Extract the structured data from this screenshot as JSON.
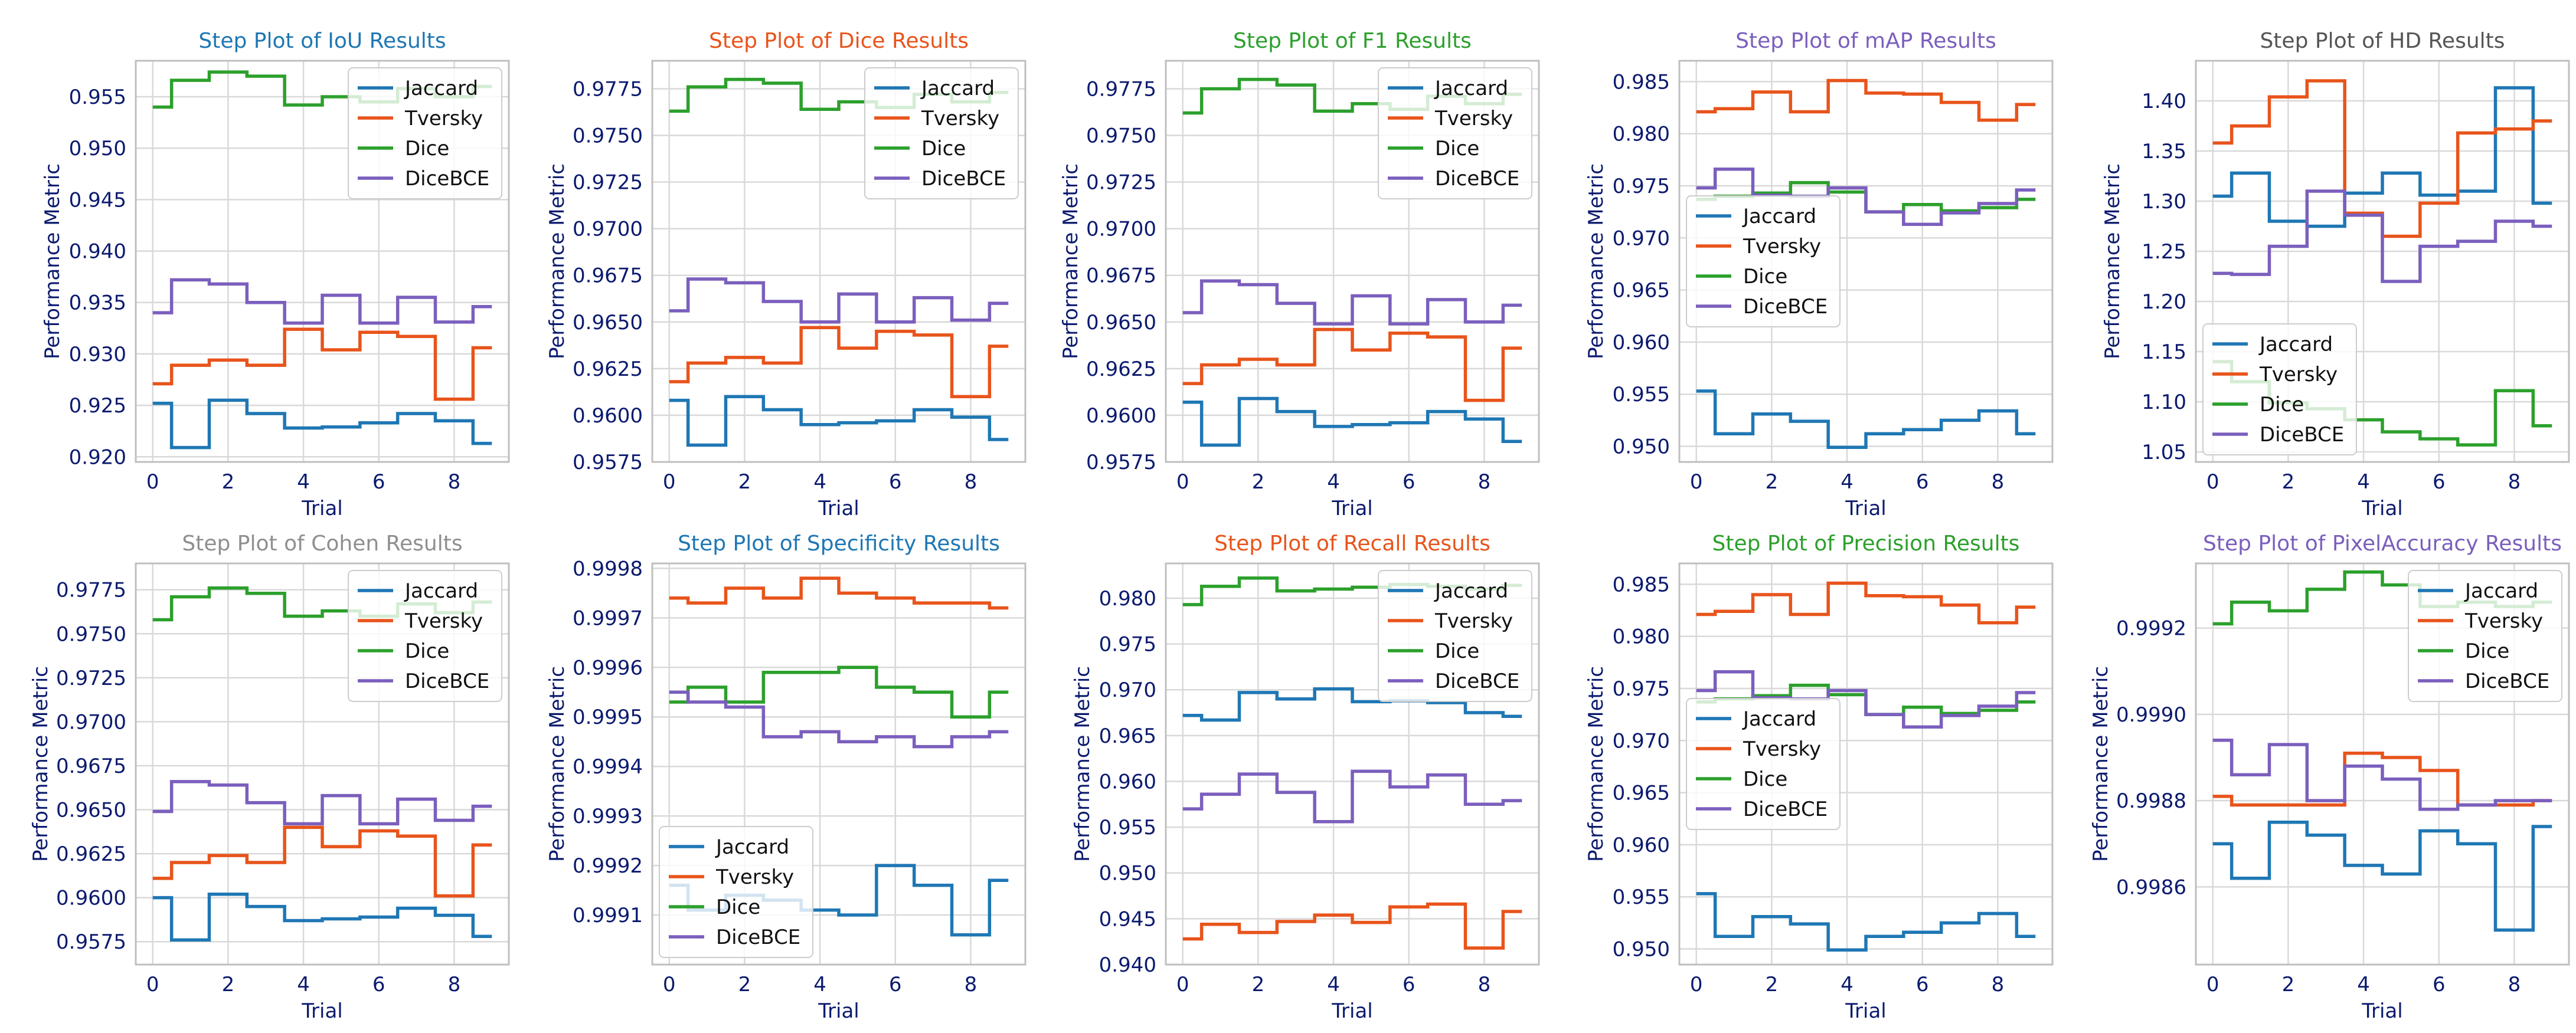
{
  "figure": {
    "series_names": [
      "Jaccard",
      "Tversky",
      "Dice",
      "DiceBCE"
    ],
    "series_colors": [
      "#1f77b4",
      "#e8541b",
      "#2ca02c",
      "#7b5fbd"
    ],
    "xlabel": "Trial",
    "ylabel": "Performance Metric",
    "x": [
      0,
      1,
      2,
      3,
      4,
      5,
      6,
      7,
      8,
      9
    ]
  },
  "chart_data": [
    {
      "type": "line",
      "step": "mid",
      "title": "Step Plot of IoU Results",
      "title_color": "#1f77b4",
      "xlabel": "Trial",
      "ylabel": "Performance Metric",
      "xlim": [
        -0.45,
        9.45
      ],
      "ylim": [
        0.9195,
        0.9585
      ],
      "xticks": [
        0,
        2,
        4,
        6,
        8
      ],
      "yticks": [
        0.92,
        0.925,
        0.93,
        0.935,
        0.94,
        0.945,
        0.95,
        0.955
      ],
      "yticklabels": [
        "0.920",
        "0.925",
        "0.930",
        "0.935",
        "0.940",
        "0.945",
        "0.950",
        "0.955"
      ],
      "legend_loc": "upper right",
      "series": [
        {
          "name": "Jaccard",
          "values": [
            0.9252,
            0.9209,
            0.9255,
            0.9242,
            0.9228,
            0.9229,
            0.9233,
            0.9242,
            0.9235,
            0.9213
          ]
        },
        {
          "name": "Tversky",
          "values": [
            0.9271,
            0.9289,
            0.9294,
            0.9289,
            0.9324,
            0.9304,
            0.9321,
            0.9317,
            0.9256,
            0.9306
          ]
        },
        {
          "name": "Dice",
          "values": [
            0.954,
            0.9566,
            0.9574,
            0.957,
            0.9542,
            0.955,
            0.9545,
            0.9558,
            0.955,
            0.956
          ]
        },
        {
          "name": "DiceBCE",
          "values": [
            0.934,
            0.9372,
            0.9368,
            0.935,
            0.933,
            0.9357,
            0.933,
            0.9355,
            0.9331,
            0.9346
          ]
        }
      ]
    },
    {
      "type": "line",
      "step": "mid",
      "title": "Step Plot of Dice Results",
      "title_color": "#e8541b",
      "xlabel": "Trial",
      "ylabel": "Performance Metric",
      "xlim": [
        -0.45,
        9.45
      ],
      "ylim": [
        0.9575,
        0.979
      ],
      "xticks": [
        0,
        2,
        4,
        6,
        8
      ],
      "yticks": [
        0.9575,
        0.96,
        0.9625,
        0.965,
        0.9675,
        0.97,
        0.9725,
        0.975,
        0.9775
      ],
      "yticklabels": [
        "0.9575",
        "0.9600",
        "0.9625",
        "0.9650",
        "0.9675",
        "0.9700",
        "0.9725",
        "0.9750",
        "0.9775"
      ],
      "legend_loc": "upper right",
      "series": [
        {
          "name": "Jaccard",
          "values": [
            0.9608,
            0.9584,
            0.961,
            0.9603,
            0.9595,
            0.9596,
            0.9597,
            0.9603,
            0.9599,
            0.9587
          ]
        },
        {
          "name": "Tversky",
          "values": [
            0.9618,
            0.9628,
            0.9631,
            0.9628,
            0.9647,
            0.9636,
            0.9645,
            0.9643,
            0.961,
            0.9637
          ]
        },
        {
          "name": "Dice",
          "values": [
            0.9763,
            0.9776,
            0.978,
            0.9778,
            0.9764,
            0.9768,
            0.9765,
            0.9772,
            0.9768,
            0.9773
          ]
        },
        {
          "name": "DiceBCE",
          "values": [
            0.9656,
            0.9673,
            0.9671,
            0.9661,
            0.965,
            0.9665,
            0.965,
            0.9663,
            0.9651,
            0.966
          ]
        }
      ]
    },
    {
      "type": "line",
      "step": "mid",
      "title": "Step Plot of F1 Results",
      "title_color": "#2ca02c",
      "xlabel": "Trial",
      "ylabel": "Performance Metric",
      "xlim": [
        -0.45,
        9.45
      ],
      "ylim": [
        0.9575,
        0.979
      ],
      "xticks": [
        0,
        2,
        4,
        6,
        8
      ],
      "yticks": [
        0.9575,
        0.96,
        0.9625,
        0.965,
        0.9675,
        0.97,
        0.9725,
        0.975,
        0.9775
      ],
      "yticklabels": [
        "0.9575",
        "0.9600",
        "0.9625",
        "0.9650",
        "0.9675",
        "0.9700",
        "0.9725",
        "0.9750",
        "0.9775"
      ],
      "legend_loc": "upper right",
      "series": [
        {
          "name": "Jaccard",
          "values": [
            0.9607,
            0.9584,
            0.9609,
            0.9602,
            0.9594,
            0.9595,
            0.9596,
            0.9602,
            0.9598,
            0.9586
          ]
        },
        {
          "name": "Tversky",
          "values": [
            0.9617,
            0.9627,
            0.963,
            0.9627,
            0.9646,
            0.9635,
            0.9644,
            0.9642,
            0.9608,
            0.9636
          ]
        },
        {
          "name": "Dice",
          "values": [
            0.9762,
            0.9775,
            0.978,
            0.9777,
            0.9763,
            0.9767,
            0.9764,
            0.9771,
            0.9767,
            0.9772
          ]
        },
        {
          "name": "DiceBCE",
          "values": [
            0.9655,
            0.9672,
            0.967,
            0.966,
            0.9649,
            0.9664,
            0.9649,
            0.9662,
            0.965,
            0.9659
          ]
        }
      ]
    },
    {
      "type": "line",
      "step": "mid",
      "title": "Step Plot of mAP Results",
      "title_color": "#7b5fbd",
      "xlabel": "Trial",
      "ylabel": "Performance Metric",
      "xlim": [
        -0.45,
        9.45
      ],
      "ylim": [
        0.9485,
        0.987
      ],
      "xticks": [
        0,
        2,
        4,
        6,
        8
      ],
      "yticks": [
        0.95,
        0.955,
        0.96,
        0.965,
        0.97,
        0.975,
        0.98,
        0.985
      ],
      "yticklabels": [
        "0.950",
        "0.955",
        "0.960",
        "0.965",
        "0.970",
        "0.975",
        "0.980",
        "0.985"
      ],
      "legend_loc": "center left",
      "series": [
        {
          "name": "Jaccard",
          "values": [
            0.9553,
            0.9512,
            0.9531,
            0.9524,
            0.9499,
            0.9512,
            0.9516,
            0.9525,
            0.9534,
            0.9512
          ]
        },
        {
          "name": "Tversky",
          "values": [
            0.9821,
            0.9824,
            0.984,
            0.9821,
            0.9851,
            0.9839,
            0.9838,
            0.983,
            0.9813,
            0.9828
          ]
        },
        {
          "name": "Dice",
          "values": [
            0.9737,
            0.974,
            0.9743,
            0.9753,
            0.9744,
            0.9725,
            0.9732,
            0.9726,
            0.9729,
            0.9737
          ]
        },
        {
          "name": "DiceBCE",
          "values": [
            0.9748,
            0.9766,
            0.9741,
            0.974,
            0.9748,
            0.9725,
            0.9713,
            0.9724,
            0.9733,
            0.9746
          ]
        }
      ]
    },
    {
      "type": "line",
      "step": "mid",
      "title": "Step Plot of HD Results",
      "title_color": "#555555",
      "xlabel": "Trial",
      "ylabel": "Performance Metric",
      "xlim": [
        -0.45,
        9.45
      ],
      "ylim": [
        1.04,
        1.44
      ],
      "xticks": [
        0,
        2,
        4,
        6,
        8
      ],
      "yticks": [
        1.05,
        1.1,
        1.15,
        1.2,
        1.25,
        1.3,
        1.35,
        1.4
      ],
      "yticklabels": [
        "1.05",
        "1.10",
        "1.15",
        "1.20",
        "1.25",
        "1.30",
        "1.35",
        "1.40"
      ],
      "legend_loc": "lower left",
      "series": [
        {
          "name": "Jaccard",
          "values": [
            1.305,
            1.328,
            1.28,
            1.275,
            1.308,
            1.328,
            1.306,
            1.31,
            1.413,
            1.298
          ]
        },
        {
          "name": "Tversky",
          "values": [
            1.358,
            1.375,
            1.404,
            1.42,
            1.288,
            1.265,
            1.298,
            1.368,
            1.372,
            1.38
          ]
        },
        {
          "name": "Dice",
          "values": [
            1.14,
            1.12,
            1.099,
            1.093,
            1.082,
            1.07,
            1.063,
            1.057,
            1.111,
            1.076
          ]
        },
        {
          "name": "DiceBCE",
          "values": [
            1.228,
            1.227,
            1.255,
            1.31,
            1.286,
            1.22,
            1.255,
            1.26,
            1.28,
            1.275
          ]
        }
      ]
    },
    {
      "type": "line",
      "step": "mid",
      "title": "Step Plot of Cohen Results",
      "title_color": "#8f8f8f",
      "xlabel": "Trial",
      "ylabel": "Performance Metric",
      "xlim": [
        -0.45,
        9.45
      ],
      "ylim": [
        0.9562,
        0.979
      ],
      "xticks": [
        0,
        2,
        4,
        6,
        8
      ],
      "yticks": [
        0.9575,
        0.96,
        0.9625,
        0.965,
        0.9675,
        0.97,
        0.9725,
        0.975,
        0.9775
      ],
      "yticklabels": [
        "0.9575",
        "0.9600",
        "0.9625",
        "0.9650",
        "0.9675",
        "0.9700",
        "0.9725",
        "0.9750",
        "0.9775"
      ],
      "legend_loc": "upper right",
      "series": [
        {
          "name": "Jaccard",
          "values": [
            0.96,
            0.9576,
            0.9602,
            0.9595,
            0.9587,
            0.9588,
            0.9589,
            0.9594,
            0.959,
            0.9578
          ]
        },
        {
          "name": "Tversky",
          "values": [
            0.9611,
            0.962,
            0.9624,
            0.962,
            0.964,
            0.9629,
            0.9638,
            0.9635,
            0.9601,
            0.963
          ]
        },
        {
          "name": "Dice",
          "values": [
            0.9758,
            0.9771,
            0.9776,
            0.9773,
            0.976,
            0.9763,
            0.976,
            0.9767,
            0.9762,
            0.9768
          ]
        },
        {
          "name": "DiceBCE",
          "values": [
            0.9649,
            0.9666,
            0.9664,
            0.9654,
            0.9642,
            0.9658,
            0.9642,
            0.9656,
            0.9644,
            0.9652
          ]
        }
      ]
    },
    {
      "type": "line",
      "step": "mid",
      "title": "Step Plot of Specificity Results",
      "title_color": "#1f77b4",
      "xlabel": "Trial",
      "ylabel": "Performance Metric",
      "xlim": [
        -0.45,
        9.45
      ],
      "ylim": [
        0.999,
        0.99981
      ],
      "xticks": [
        0,
        2,
        4,
        6,
        8
      ],
      "yticks": [
        0.9991,
        0.9992,
        0.9993,
        0.9994,
        0.9995,
        0.9996,
        0.9997,
        0.9998
      ],
      "yticklabels": [
        "0.9991",
        "0.9992",
        "0.9993",
        "0.9994",
        "0.9995",
        "0.9996",
        "0.9997",
        "0.9998"
      ],
      "legend_loc": "lower left",
      "series": [
        {
          "name": "Jaccard",
          "values": [
            0.99916,
            0.99911,
            0.99914,
            0.99913,
            0.99911,
            0.9991,
            0.9992,
            0.99916,
            0.99906,
            0.99917
          ]
        },
        {
          "name": "Tversky",
          "values": [
            0.99974,
            0.99973,
            0.99976,
            0.99974,
            0.99978,
            0.99975,
            0.99974,
            0.99973,
            0.99973,
            0.99972
          ]
        },
        {
          "name": "Dice",
          "values": [
            0.99953,
            0.99956,
            0.99953,
            0.99959,
            0.99959,
            0.9996,
            0.99956,
            0.99955,
            0.9995,
            0.99955
          ]
        },
        {
          "name": "DiceBCE",
          "values": [
            0.99955,
            0.99953,
            0.99952,
            0.99946,
            0.99947,
            0.99945,
            0.99946,
            0.99944,
            0.99946,
            0.99947
          ]
        }
      ]
    },
    {
      "type": "line",
      "step": "mid",
      "title": "Step Plot of Recall Results",
      "title_color": "#e8541b",
      "xlabel": "Trial",
      "ylabel": "Performance Metric",
      "xlim": [
        -0.45,
        9.45
      ],
      "ylim": [
        0.94,
        0.9838
      ],
      "xticks": [
        0,
        2,
        4,
        6,
        8
      ],
      "yticks": [
        0.94,
        0.945,
        0.95,
        0.955,
        0.96,
        0.965,
        0.97,
        0.975,
        0.98
      ],
      "yticklabels": [
        "0.940",
        "0.945",
        "0.950",
        "0.955",
        "0.960",
        "0.965",
        "0.970",
        "0.975",
        "0.980"
      ],
      "legend_loc": "upper right",
      "series": [
        {
          "name": "Jaccard",
          "values": [
            0.9672,
            0.9667,
            0.9697,
            0.969,
            0.9701,
            0.9687,
            0.9688,
            0.9686,
            0.9675,
            0.9671
          ]
        },
        {
          "name": "Tversky",
          "values": [
            0.9428,
            0.9444,
            0.9435,
            0.9447,
            0.9454,
            0.9446,
            0.9463,
            0.9466,
            0.9418,
            0.9458
          ]
        },
        {
          "name": "Dice",
          "values": [
            0.9793,
            0.9813,
            0.9822,
            0.9808,
            0.981,
            0.9812,
            0.9815,
            0.9813,
            0.981,
            0.9814
          ]
        },
        {
          "name": "DiceBCE",
          "values": [
            0.957,
            0.9586,
            0.9608,
            0.9588,
            0.9556,
            0.9611,
            0.9594,
            0.9607,
            0.9575,
            0.9579
          ]
        }
      ]
    },
    {
      "type": "line",
      "step": "mid",
      "title": "Step Plot of Precision Results",
      "title_color": "#2ca02c",
      "xlabel": "Trial",
      "ylabel": "Performance Metric",
      "xlim": [
        -0.45,
        9.45
      ],
      "ylim": [
        0.9485,
        0.987
      ],
      "xticks": [
        0,
        2,
        4,
        6,
        8
      ],
      "yticks": [
        0.95,
        0.955,
        0.96,
        0.965,
        0.97,
        0.975,
        0.98,
        0.985
      ],
      "yticklabels": [
        "0.950",
        "0.955",
        "0.960",
        "0.965",
        "0.970",
        "0.975",
        "0.980",
        "0.985"
      ],
      "legend_loc": "center left",
      "series": [
        {
          "name": "Jaccard",
          "values": [
            0.9553,
            0.9512,
            0.9531,
            0.9524,
            0.9499,
            0.9512,
            0.9516,
            0.9525,
            0.9534,
            0.9512
          ]
        },
        {
          "name": "Tversky",
          "values": [
            0.9821,
            0.9824,
            0.984,
            0.9821,
            0.9851,
            0.9839,
            0.9838,
            0.983,
            0.9813,
            0.9828
          ]
        },
        {
          "name": "Dice",
          "values": [
            0.9737,
            0.974,
            0.9743,
            0.9753,
            0.9744,
            0.9725,
            0.9732,
            0.9726,
            0.9729,
            0.9737
          ]
        },
        {
          "name": "DiceBCE",
          "values": [
            0.9748,
            0.9766,
            0.9741,
            0.974,
            0.9748,
            0.9725,
            0.9713,
            0.9724,
            0.9733,
            0.9746
          ]
        }
      ]
    },
    {
      "type": "line",
      "step": "mid",
      "title": "Step Plot of PixelAccuracy Results",
      "title_color": "#7b5fbd",
      "xlabel": "Trial",
      "ylabel": "Performance Metric",
      "xlim": [
        -0.45,
        9.45
      ],
      "ylim": [
        0.99842,
        0.99935
      ],
      "xticks": [
        0,
        2,
        4,
        6,
        8
      ],
      "yticks": [
        0.9986,
        0.9988,
        0.999,
        0.9992
      ],
      "yticklabels": [
        "0.9986",
        "0.9988",
        "0.9990",
        "0.9992"
      ],
      "legend_loc": "upper right",
      "series": [
        {
          "name": "Jaccard",
          "values": [
            0.9987,
            0.99862,
            0.99875,
            0.99872,
            0.99865,
            0.99863,
            0.99873,
            0.9987,
            0.9985,
            0.99874
          ]
        },
        {
          "name": "Tversky",
          "values": [
            0.99881,
            0.99879,
            0.99879,
            0.99879,
            0.99891,
            0.9989,
            0.99887,
            0.99879,
            0.99879,
            0.9988
          ]
        },
        {
          "name": "Dice",
          "values": [
            0.99921,
            0.99926,
            0.99924,
            0.99929,
            0.99933,
            0.9993,
            0.99925,
            0.99926,
            0.99925,
            0.99926
          ]
        },
        {
          "name": "DiceBCE",
          "values": [
            0.99894,
            0.99886,
            0.99893,
            0.9988,
            0.99888,
            0.99885,
            0.99878,
            0.99879,
            0.9988,
            0.9988
          ]
        }
      ]
    }
  ]
}
